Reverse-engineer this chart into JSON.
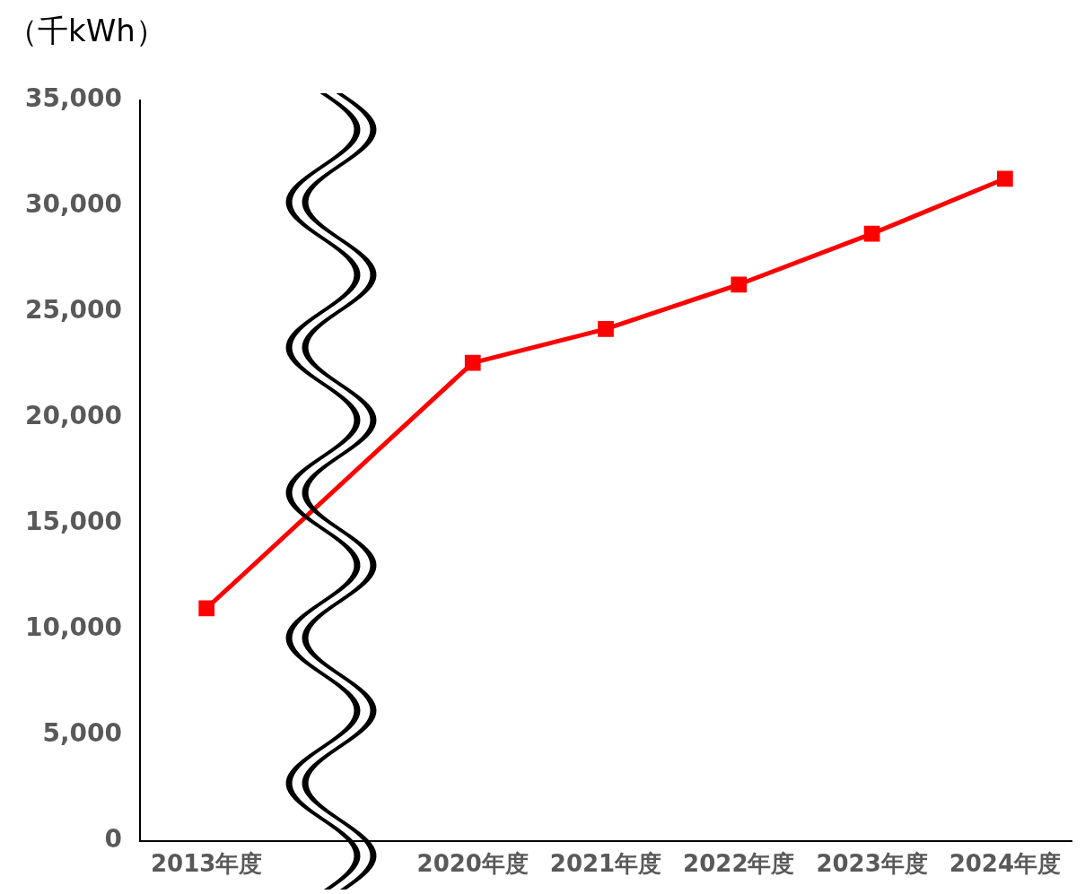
{
  "chart_data": {
    "type": "line",
    "ylabel": "（千kWh）",
    "categories": [
      "2013年度",
      null,
      "2020年度",
      "2021年度",
      "2022年度",
      "2023年度",
      "2024年度"
    ],
    "series": [
      {
        "color": "#ff0000",
        "values": [
          11000,
          null,
          22600,
          24200,
          26300,
          28700,
          31300
        ]
      }
    ],
    "ylim": [
      0,
      35000
    ],
    "yticks": [
      {
        "value": 0,
        "label": "0"
      },
      {
        "value": 5000,
        "label": "5,000"
      },
      {
        "value": 10000,
        "label": "10,000"
      },
      {
        "value": 15000,
        "label": "15,000"
      },
      {
        "value": 20000,
        "label": "20,000"
      },
      {
        "value": 25000,
        "label": "25,000"
      },
      {
        "value": 30000,
        "label": "30,000"
      },
      {
        "value": 35000,
        "label": "35,000"
      }
    ],
    "grid": false,
    "legend": false,
    "marker": "square",
    "line_style": "solid"
  }
}
